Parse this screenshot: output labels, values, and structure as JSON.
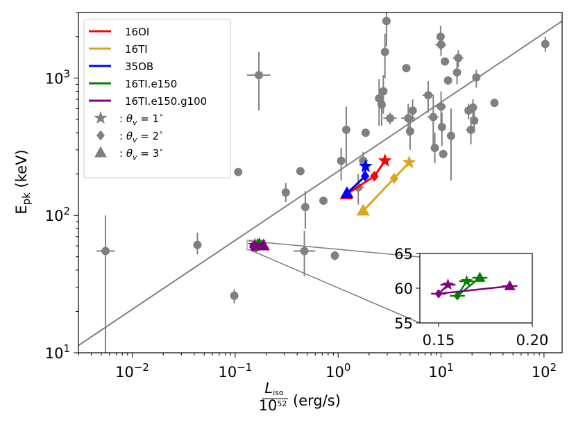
{
  "chart_data": {
    "type": "scatter",
    "xscale": "log",
    "yscale": "log",
    "xlim": [
      0.003,
      150
    ],
    "ylim": [
      10,
      3000
    ],
    "ylabel": "E",
    "ylabel_sub": "pk",
    "ylabel_unit": "(keV)",
    "xlabel_num_main": "L",
    "xlabel_num_sub": "iso",
    "xlabel_den_main": "10",
    "xlabel_den_sup": "52",
    "xlabel_unit": "(erg/s)",
    "x_ticks": [
      {
        "value": 0.01,
        "base": "10",
        "exp": "−2"
      },
      {
        "value": 0.1,
        "base": "10",
        "exp": "−1"
      },
      {
        "value": 1,
        "base": "10",
        "exp": "0"
      },
      {
        "value": 10,
        "base": "10",
        "exp": "1"
      },
      {
        "value": 100,
        "base": "10",
        "exp": "2"
      }
    ],
    "y_ticks": [
      {
        "value": 10,
        "base": "10",
        "exp": "1"
      },
      {
        "value": 100,
        "base": "10",
        "exp": "2"
      },
      {
        "value": 1000,
        "base": "10",
        "exp": "3"
      }
    ],
    "fit_line": {
      "color": "#808080",
      "points": [
        [
          0.003,
          11.3
        ],
        [
          150,
          2600
        ]
      ]
    },
    "observations": [
      {
        "x": 0.0055,
        "y": 55,
        "xerr": [
          0.0045,
          0.0068
        ],
        "yerr": [
          8,
          100
        ]
      },
      {
        "x": 0.043,
        "y": 61,
        "yerr": [
          52,
          75
        ]
      },
      {
        "x": 0.098,
        "y": 26,
        "yerr": [
          23,
          29
        ]
      },
      {
        "x": 0.107,
        "y": 207
      },
      {
        "x": 0.17,
        "y": 1050,
        "xerr": [
          0.13,
          0.22
        ],
        "yerr": [
          580,
          1550
        ]
      },
      {
        "x": 0.31,
        "y": 147,
        "yerr": [
          125,
          172
        ]
      },
      {
        "x": 0.43,
        "y": 210
      },
      {
        "x": 0.47,
        "y": 55,
        "xerr": [
          0.37,
          0.6
        ],
        "yerr": [
          36,
          77
        ]
      },
      {
        "x": 0.48,
        "y": 115,
        "yerr": [
          80,
          150
        ]
      },
      {
        "x": 0.72,
        "y": 128
      },
      {
        "x": 0.93,
        "y": 51,
        "yerr": [
          47,
          55
        ]
      },
      {
        "x": 1.07,
        "y": 250,
        "yerr": [
          180,
          310
        ]
      },
      {
        "x": 1.2,
        "y": 420,
        "yerr": [
          230,
          620
        ]
      },
      {
        "x": 1.57,
        "y": 160,
        "xerr": [
          1.38,
          1.8
        ],
        "yerr": [
          120,
          200
        ]
      },
      {
        "x": 1.75,
        "y": 250,
        "xerr": [
          1.6,
          1.95
        ],
        "yerr": [
          200,
          290
        ]
      },
      {
        "x": 1.85,
        "y": 400
      },
      {
        "x": 2.5,
        "y": 710,
        "xerr": [
          2.3,
          2.75
        ],
        "yerr": [
          450,
          980
        ]
      },
      {
        "x": 2.65,
        "y": 640,
        "yerr": [
          450,
          830
        ]
      },
      {
        "x": 2.75,
        "y": 800,
        "yerr": [
          550,
          1050
        ]
      },
      {
        "x": 2.85,
        "y": 1550,
        "yerr": [
          1000,
          2100
        ]
      },
      {
        "x": 2.95,
        "y": 2600,
        "yerr": [
          1700,
          3100
        ]
      },
      {
        "x": 3.2,
        "y": 510,
        "xerr": [
          2.75,
          3.7
        ],
        "yerr": [
          460,
          560
        ]
      },
      {
        "x": 4.6,
        "y": 1180
      },
      {
        "x": 4.8,
        "y": 510,
        "xerr": [
          4.1,
          5.6
        ],
        "yerr": [
          380,
          650
        ]
      },
      {
        "x": 5.0,
        "y": 410,
        "yerr": [
          300,
          520
        ]
      },
      {
        "x": 5.3,
        "y": 580,
        "yerr": [
          480,
          700
        ]
      },
      {
        "x": 7.5,
        "y": 750,
        "xerr": [
          6.6,
          8.5
        ],
        "yerr": [
          560,
          950
        ]
      },
      {
        "x": 8.4,
        "y": 520,
        "xerr": [
          7.4,
          9.5
        ],
        "yerr": [
          300,
          740
        ]
      },
      {
        "x": 8.7,
        "y": 310,
        "yerr": [
          240,
          400
        ]
      },
      {
        "x": 9.9,
        "y": 2000,
        "yerr": [
          1600,
          2400
        ]
      },
      {
        "x": 10.0,
        "y": 1750,
        "xerr": [
          8.8,
          11.2
        ],
        "yerr": [
          1450,
          2050
        ]
      },
      {
        "x": 10.0,
        "y": 620,
        "xerr": [
          8.9,
          11.2
        ],
        "yerr": [
          450,
          800
        ]
      },
      {
        "x": 10.2,
        "y": 440,
        "yerr": [
          320,
          560
        ]
      },
      {
        "x": 10.5,
        "y": 280
      },
      {
        "x": 10.9,
        "y": 1320
      },
      {
        "x": 11.7,
        "y": 960
      },
      {
        "x": 12.5,
        "y": 380,
        "yerr": [
          180,
          600
        ]
      },
      {
        "x": 14.3,
        "y": 1100,
        "yerr": [
          900,
          1300
        ]
      },
      {
        "x": 14.7,
        "y": 1400,
        "xerr": [
          13.0,
          16.5
        ],
        "yerr": [
          1200,
          1600
        ]
      },
      {
        "x": 18.5,
        "y": 580,
        "yerr": [
          500,
          650
        ]
      },
      {
        "x": 19.5,
        "y": 420,
        "xerr": [
          17.5,
          21.5
        ],
        "yerr": [
          330,
          520
        ]
      },
      {
        "x": 20.4,
        "y": 610,
        "yerr": [
          500,
          700
        ]
      },
      {
        "x": 21.0,
        "y": 490,
        "yerr": [
          400,
          600
        ]
      },
      {
        "x": 22.0,
        "y": 1010,
        "yerr": [
          850,
          1150
        ]
      },
      {
        "x": 33.0,
        "y": 660
      },
      {
        "x": 103.0,
        "y": 1770,
        "yerr": [
          1550,
          2000
        ]
      }
    ],
    "series": [
      {
        "name": "16OI",
        "color": "#ff0000",
        "points": [
          [
            1.2,
            142
          ],
          [
            2.25,
            193
          ],
          [
            2.85,
            250
          ]
        ],
        "markers": [
          "triangle",
          "diamond",
          "star"
        ]
      },
      {
        "name": "16TI",
        "color": "#daa520",
        "points": [
          [
            1.75,
            108
          ],
          [
            3.5,
            186
          ],
          [
            4.9,
            243
          ]
        ],
        "markers": [
          "triangle",
          "diamond",
          "star"
        ]
      },
      {
        "name": "35OB",
        "color": "#0000ff",
        "points": [
          [
            1.22,
            145
          ],
          [
            1.83,
            193
          ],
          [
            1.85,
            228
          ]
        ],
        "markers": [
          "triangle",
          "diamond",
          "star"
        ]
      },
      {
        "name": "16TI.e150",
        "color": "#008000",
        "points": [
          [
            0.172,
            61.5
          ],
          [
            0.16,
            58.9
          ],
          [
            0.165,
            61.0
          ]
        ],
        "markers": [
          "triangle",
          "diamond",
          "star"
        ]
      },
      {
        "name": "16TI.e150.g100",
        "color": "#800080",
        "points": [
          [
            0.188,
            60.3
          ],
          [
            0.15,
            59.2
          ],
          [
            0.155,
            60.5
          ]
        ],
        "markers": [
          "triangle",
          "diamond",
          "star"
        ]
      }
    ],
    "legend": {
      "placement": "top-left",
      "lines": [
        {
          "label": "16OI",
          "color": "#ff0000"
        },
        {
          "label": "16TI",
          "color": "#daa520"
        },
        {
          "label": "35OB",
          "color": "#0000ff"
        },
        {
          "label": "16TI.e150",
          "color": "#008000"
        },
        {
          "label": "16TI.e150.g100",
          "color": "#800080"
        }
      ],
      "markers": [
        {
          "marker": "star",
          "prefix": ": ",
          "theta": "θ",
          "sub": "v",
          "eq": " = 1",
          "deg": "∘"
        },
        {
          "marker": "diamond",
          "prefix": ": ",
          "theta": "θ",
          "sub": "v",
          "eq": " = 2",
          "deg": "∘"
        },
        {
          "marker": "triangle",
          "prefix": ": ",
          "theta": "θ",
          "sub": "v",
          "eq": " = 3",
          "deg": "∘"
        }
      ]
    },
    "inset": {
      "placement": "lower-right",
      "xlim": [
        0.14,
        0.2
      ],
      "ylim": [
        55,
        65
      ],
      "x_ticks": [
        {
          "value": 0.15,
          "label": "0.15"
        },
        {
          "value": 0.2,
          "label": "0.20"
        }
      ],
      "y_ticks": [
        {
          "value": 55,
          "label": "55"
        },
        {
          "value": 60,
          "label": "60"
        },
        {
          "value": 65,
          "label": "65"
        }
      ],
      "series": [
        {
          "name": "16TI.e150",
          "color": "#008000",
          "points": [
            [
              0.172,
              61.5
            ],
            [
              0.16,
              58.9
            ],
            [
              0.165,
              61.0
            ]
          ],
          "xerr": 0.004,
          "markers": [
            "triangle",
            "diamond",
            "star"
          ]
        },
        {
          "name": "16TI.e150.g100",
          "color": "#800080",
          "points": [
            [
              0.188,
              60.3
            ],
            [
              0.15,
              59.2
            ],
            [
              0.155,
              60.5
            ]
          ],
          "xerr": 0.004,
          "markers": [
            "triangle",
            "diamond",
            "star"
          ]
        }
      ]
    }
  }
}
